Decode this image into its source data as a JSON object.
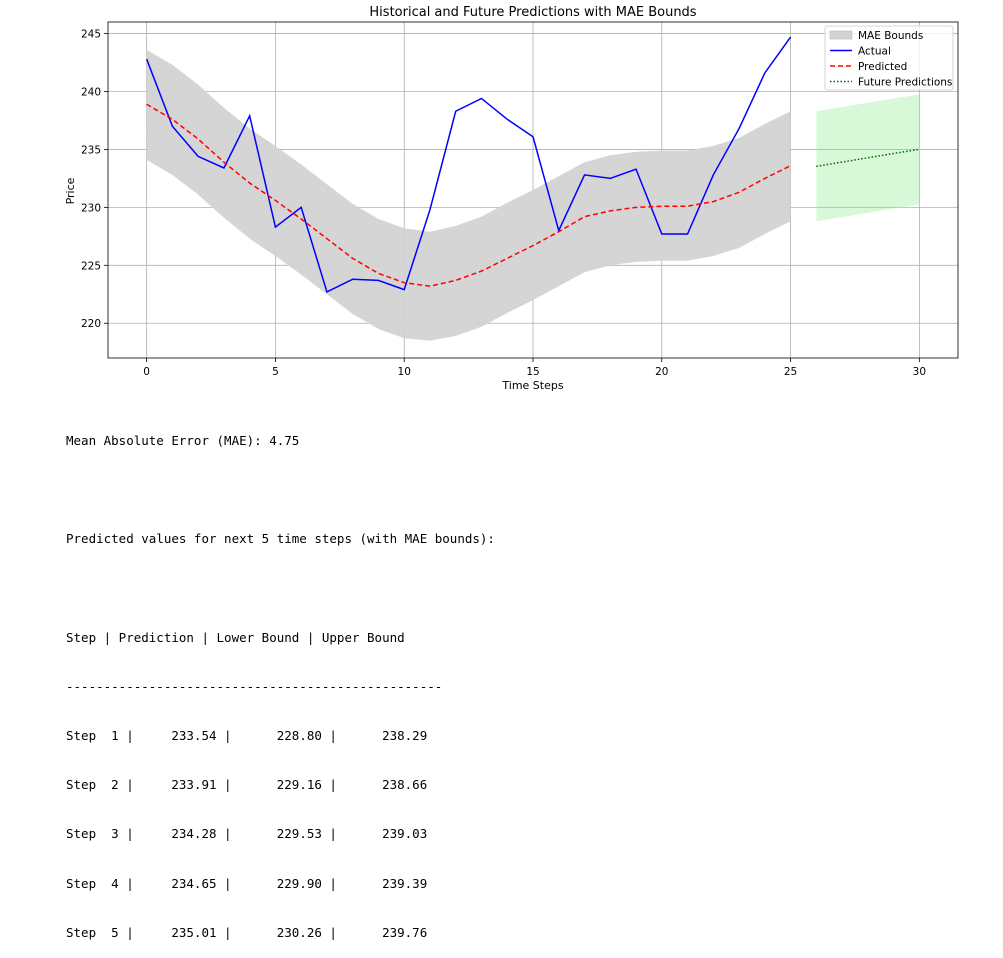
{
  "chart_data": {
    "type": "line",
    "title": "Historical and Future Predictions with MAE Bounds",
    "xlabel": "Time Steps",
    "ylabel": "Price",
    "xlim": [
      -1.5,
      31.5
    ],
    "ylim": [
      217,
      246
    ],
    "xticks": [
      0,
      5,
      10,
      15,
      20,
      25,
      30
    ],
    "yticks": [
      220,
      225,
      230,
      235,
      240,
      245
    ],
    "grid": true,
    "legend_position": "top-right",
    "mae": 4.75,
    "historical": {
      "x": [
        0,
        1,
        2,
        3,
        4,
        5,
        6,
        7,
        8,
        9,
        10,
        11,
        12,
        13,
        14,
        15,
        16,
        17,
        18,
        19,
        20,
        21,
        22,
        23,
        24,
        25
      ],
      "actual": [
        242.8,
        237.0,
        234.4,
        233.4,
        237.9,
        228.3,
        230.0,
        222.7,
        223.8,
        223.7,
        222.9,
        229.8,
        238.3,
        239.4,
        237.6,
        236.1,
        228.0,
        232.8,
        232.5,
        233.3,
        227.7,
        227.7,
        232.8,
        236.8,
        241.6,
        244.7
      ],
      "predicted": [
        238.9,
        237.6,
        235.9,
        233.9,
        232.1,
        230.6,
        229.0,
        227.3,
        225.6,
        224.3,
        223.5,
        223.2,
        223.7,
        224.5,
        225.6,
        226.7,
        227.9,
        229.2,
        229.7,
        230.0,
        230.1,
        230.1,
        230.5,
        231.3,
        232.5,
        233.6
      ],
      "lower": [
        234.1,
        232.8,
        231.1,
        229.1,
        227.3,
        225.8,
        224.2,
        222.5,
        220.8,
        219.5,
        218.7,
        218.5,
        218.9,
        219.7,
        220.9,
        222.0,
        223.2,
        224.4,
        225.0,
        225.3,
        225.4,
        225.4,
        225.8,
        226.5,
        227.7,
        228.8
      ],
      "upper": [
        243.6,
        242.3,
        240.6,
        238.6,
        236.8,
        235.3,
        233.7,
        232.0,
        230.3,
        229.0,
        228.2,
        227.9,
        228.4,
        229.2,
        230.4,
        231.5,
        232.7,
        233.9,
        234.5,
        234.8,
        234.9,
        234.9,
        235.3,
        236.0,
        237.2,
        238.3
      ]
    },
    "future": {
      "x": [
        26,
        27,
        28,
        29,
        30
      ],
      "predicted": [
        233.54,
        233.91,
        234.28,
        234.65,
        235.01
      ],
      "lower": [
        228.8,
        229.16,
        229.53,
        229.9,
        230.26
      ],
      "upper": [
        238.29,
        238.66,
        239.03,
        239.39,
        239.76
      ]
    },
    "series": [
      {
        "name": "MAE Bounds",
        "color": "#d3d3d3",
        "style": "fill"
      },
      {
        "name": "Actual",
        "color": "#0000ff",
        "style": "solid"
      },
      {
        "name": "Predicted",
        "color": "#ff0000",
        "style": "dashed"
      },
      {
        "name": "Future Predictions",
        "color": "#006400",
        "style": "dotted"
      }
    ],
    "future_band_color": "#90ee90"
  },
  "output": {
    "mae_line": "Mean Absolute Error (MAE): 4.75",
    "heading": "Predicted values for next 5 time steps (with MAE bounds):",
    "table_header": "Step | Prediction | Lower Bound | Upper Bound",
    "separator": "--------------------------------------------------",
    "rows": [
      "Step  1 |     233.54 |      228.80 |      238.29",
      "Step  2 |     233.91 |      229.16 |      238.66",
      "Step  3 |     234.28 |      229.53 |      239.03",
      "Step  4 |     234.65 |      229.90 |      239.39",
      "Step  5 |     235.01 |      230.26 |      239.76"
    ]
  }
}
